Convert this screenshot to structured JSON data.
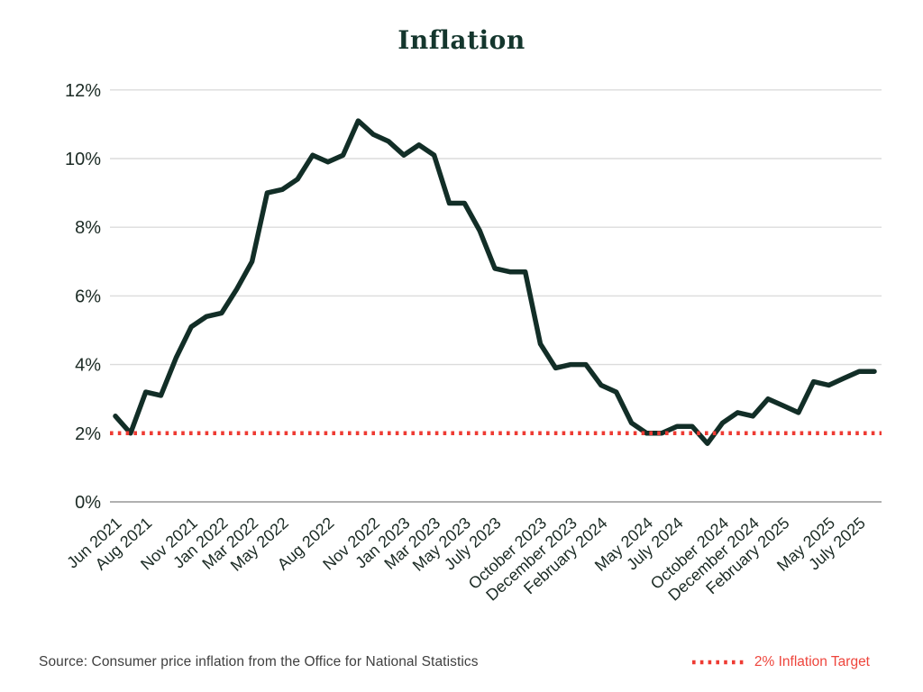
{
  "title": "Inflation",
  "source_note": "Source: Consumer price inflation from the Office for National Statistics",
  "legend": {
    "target_label": "2% Inflation Target"
  },
  "colors": {
    "line": "#122e27",
    "target": "#ee3b33",
    "legend_text": "#ee453c",
    "grid": "#dcdcdc",
    "axis_zero": "#b0b0b0",
    "tick_text": "#1b2a24",
    "title": "#14362d",
    "source_text": "#3f3f3f"
  },
  "chart_data": {
    "type": "line",
    "title": "Inflation",
    "xlabel": "",
    "ylabel": "",
    "ylim": [
      0,
      12
    ],
    "grid": "horizontal",
    "legend_position": "bottom-right",
    "series": [
      {
        "name": "Consumer price inflation",
        "months": [
          "Jun 2021",
          "Jul 2021",
          "Aug 2021",
          "Sep 2021",
          "Oct 2021",
          "Nov 2021",
          "Dec 2021",
          "Jan 2022",
          "Feb 2022",
          "Mar 2022",
          "Apr 2022",
          "May 2022",
          "Jun 2022",
          "Jul 2022",
          "Aug 2022",
          "Sep 2022",
          "Oct 2022",
          "Nov 2022",
          "Dec 2022",
          "Jan 2023",
          "Feb 2023",
          "Mar 2023",
          "Apr 2023",
          "May 2023",
          "Jun 2023",
          "Jul 2023",
          "Aug 2023",
          "Sep 2023",
          "Oct 2023",
          "Nov 2023",
          "Dec 2023",
          "Jan 2024",
          "Feb 2024",
          "Mar 2024",
          "Apr 2024",
          "May 2024",
          "Jun 2024",
          "Jul 2024",
          "Aug 2024",
          "Sep 2024",
          "Oct 2024",
          "Nov 2024",
          "Dec 2024",
          "Jan 2025",
          "Feb 2025",
          "Mar 2025",
          "Apr 2025",
          "May 2025",
          "Jun 2025",
          "Jul 2025",
          "Aug 2025"
        ],
        "values": [
          2.5,
          2.0,
          3.2,
          3.1,
          4.2,
          5.1,
          5.4,
          5.5,
          6.2,
          7.0,
          9.0,
          9.1,
          9.4,
          10.1,
          9.9,
          10.1,
          11.1,
          10.7,
          10.5,
          10.1,
          10.4,
          10.1,
          8.7,
          8.7,
          7.9,
          6.8,
          6.7,
          6.7,
          4.6,
          3.9,
          4.0,
          4.0,
          3.4,
          3.2,
          2.3,
          2.0,
          2.0,
          2.2,
          2.2,
          1.7,
          2.3,
          2.6,
          2.5,
          3.0,
          2.8,
          2.6,
          3.5,
          3.4,
          3.6,
          3.8,
          3.8
        ]
      }
    ],
    "x_ticks": [
      {
        "label": "Jun 2021",
        "i": 0
      },
      {
        "label": "Aug 2021",
        "i": 2
      },
      {
        "label": "Nov 2021",
        "i": 5
      },
      {
        "label": "Jan 2022",
        "i": 7
      },
      {
        "label": "Mar 2022",
        "i": 9
      },
      {
        "label": "May 2022",
        "i": 11
      },
      {
        "label": "Aug 2022",
        "i": 14
      },
      {
        "label": "Nov 2022",
        "i": 17
      },
      {
        "label": "Jan 2023",
        "i": 19
      },
      {
        "label": "Mar 2023",
        "i": 21
      },
      {
        "label": "May 2023",
        "i": 23
      },
      {
        "label": "July 2023",
        "i": 25
      },
      {
        "label": "October 2023",
        "i": 28
      },
      {
        "label": "December 2023",
        "i": 30
      },
      {
        "label": "February 2024",
        "i": 32
      },
      {
        "label": "May 2024",
        "i": 35
      },
      {
        "label": "July 2024",
        "i": 37
      },
      {
        "label": "October 2024",
        "i": 40
      },
      {
        "label": "December 2024",
        "i": 42
      },
      {
        "label": "February 2025",
        "i": 44
      },
      {
        "label": "May 2025",
        "i": 47
      },
      {
        "label": "July 2025",
        "i": 49
      }
    ],
    "y_ticks": [
      {
        "label": "0%",
        "v": 0
      },
      {
        "label": "2%",
        "v": 2
      },
      {
        "label": "4%",
        "v": 4
      },
      {
        "label": "6%",
        "v": 6
      },
      {
        "label": "8%",
        "v": 8
      },
      {
        "label": "10%",
        "v": 10
      },
      {
        "label": "12%",
        "v": 12
      }
    ],
    "target_line": {
      "value": 2,
      "label": "2% Inflation Target",
      "style": "dotted"
    }
  }
}
